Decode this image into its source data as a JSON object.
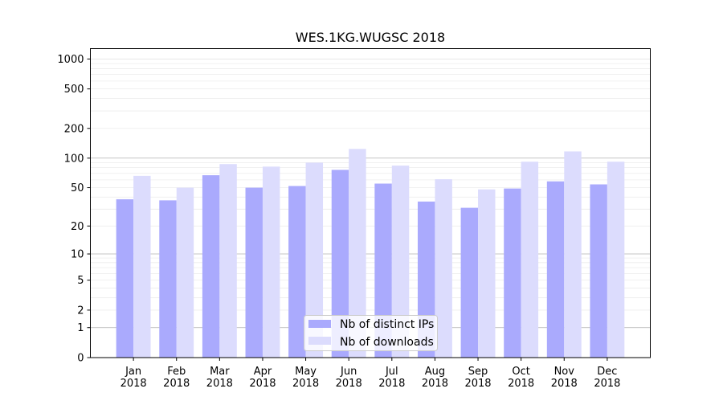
{
  "chart_data": {
    "type": "bar",
    "title": "WES.1KG.WUGSC 2018",
    "xlabel": "",
    "ylabel": "",
    "yscale": "log10(y+1)",
    "ylim": [
      0,
      1272
    ],
    "yticks": [
      0,
      1,
      2,
      5,
      10,
      20,
      50,
      100,
      200,
      500,
      1000
    ],
    "grid": true,
    "legend_position": "lower-center",
    "categories": [
      "Jan\n2018",
      "Feb\n2018",
      "Mar\n2018",
      "Apr\n2018",
      "May\n2018",
      "Jun\n2018",
      "Jul\n2018",
      "Aug\n2018",
      "Sep\n2018",
      "Oct\n2018",
      "Nov\n2018",
      "Dec\n2018"
    ],
    "series": [
      {
        "name": "Nb of distinct IPs",
        "color": "#aaaafd",
        "values": [
          38,
          37,
          67,
          50,
          52,
          76,
          55,
          36,
          31,
          49,
          58,
          54
        ]
      },
      {
        "name": "Nb of downloads",
        "color": "#dcdcfd",
        "values": [
          66,
          50,
          87,
          82,
          90,
          124,
          84,
          61,
          48,
          92,
          117,
          92
        ]
      }
    ]
  }
}
